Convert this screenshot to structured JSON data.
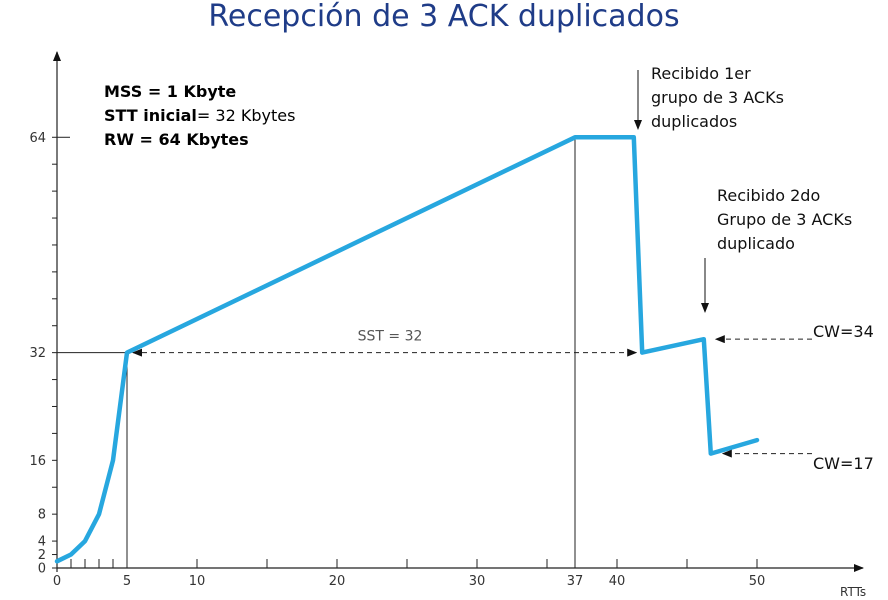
{
  "chart_data": {
    "type": "line",
    "title": "Recepción de 3 ACK duplicados",
    "xlabel": "RTTs",
    "ylabel": "",
    "xlim": [
      0,
      57
    ],
    "ylim": [
      0,
      70
    ],
    "x_ticks": [
      {
        "value": 0,
        "label": "0"
      },
      {
        "value": 5,
        "label": "5"
      },
      {
        "value": 10,
        "label": "10"
      },
      {
        "value": 20,
        "label": "20"
      },
      {
        "value": 30,
        "label": "30"
      },
      {
        "value": 37,
        "label": "37"
      },
      {
        "value": 40,
        "label": "40"
      },
      {
        "value": 50,
        "label": "50"
      }
    ],
    "x_minor_ticks": [
      1,
      2,
      3,
      4,
      15,
      25,
      35,
      45
    ],
    "y_ticks": [
      {
        "value": 0,
        "label": "0"
      },
      {
        "value": 2,
        "label": "2"
      },
      {
        "value": 4,
        "label": "4"
      },
      {
        "value": 8,
        "label": "8"
      },
      {
        "value": 16,
        "label": "16"
      },
      {
        "value": 32,
        "label": "32"
      },
      {
        "value": 64,
        "label": "64"
      }
    ],
    "y_minor_ticks": [
      12,
      20,
      24,
      28,
      36,
      40,
      44,
      48,
      52,
      56,
      60
    ],
    "series": [
      {
        "color": "#27a7df",
        "x": [
          0,
          1,
          2,
          3,
          4,
          5,
          37,
          41.2,
          41.8,
          46.2,
          46.7,
          50
        ],
        "y": [
          1,
          2,
          4,
          8,
          16,
          32,
          64,
          64,
          32,
          34,
          17,
          19
        ]
      }
    ],
    "info_lines": {
      "mss": "MSS = 1 Kbyte",
      "stt_bold": "STT inicial",
      "stt_rest": "= 32 Kbytes",
      "rw": "RW = 64 Kbytes"
    },
    "annotations": {
      "first_ack": [
        "Recibido 1er",
        "grupo de 3 ACKs",
        "duplicados"
      ],
      "second_ack": [
        "Recibido 2do",
        "Grupo de 3 ACKs",
        "duplicado"
      ],
      "sst": "SST = 32",
      "cw1": "CW=34",
      "cw2": "CW=17"
    },
    "grid": false
  }
}
